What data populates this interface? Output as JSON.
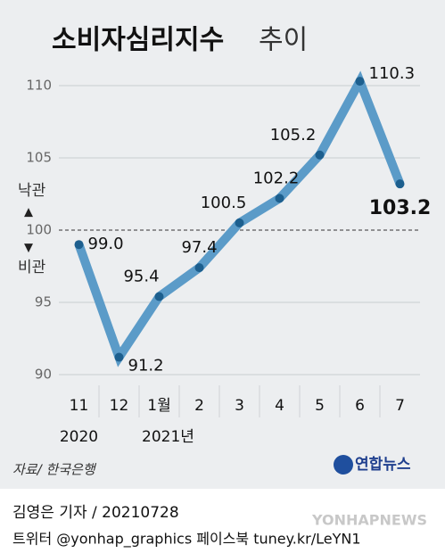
{
  "chart_data": {
    "type": "line",
    "title": "소비자심리지수",
    "title_suffix": "추이",
    "categories": [
      "11",
      "12",
      "1월",
      "2",
      "3",
      "4",
      "5",
      "6",
      "7"
    ],
    "x_sublabels": [
      "2020",
      null,
      "2021년",
      null,
      null,
      null,
      null,
      null,
      null
    ],
    "series": [
      {
        "name": "소비자심리지수",
        "color": "#5b9bc8",
        "marker_color": "#1d5f8e",
        "values": [
          99.0,
          91.2,
          95.4,
          97.4,
          100.5,
          102.2,
          105.2,
          110.3,
          103.2
        ],
        "value_labels": [
          "99.0",
          "91.2",
          "95.4",
          "97.4",
          "100.5",
          "102.2",
          "105.2",
          "110.3",
          "103.2"
        ]
      }
    ],
    "ylim": [
      90,
      112
    ],
    "yticks": [
      90,
      95,
      100,
      105,
      110
    ],
    "grid": true,
    "reference": {
      "value": 100,
      "above_label": "낙관",
      "below_label": "비관"
    }
  },
  "source": "자료/ 한국은행",
  "logo": "연합뉴스",
  "byline": "김영은 기자 / 20210728",
  "social": "트위터 @yonhap_graphics  페이스북 tuney.kr/LeYN1",
  "watermark": "YONHAPNEWS"
}
